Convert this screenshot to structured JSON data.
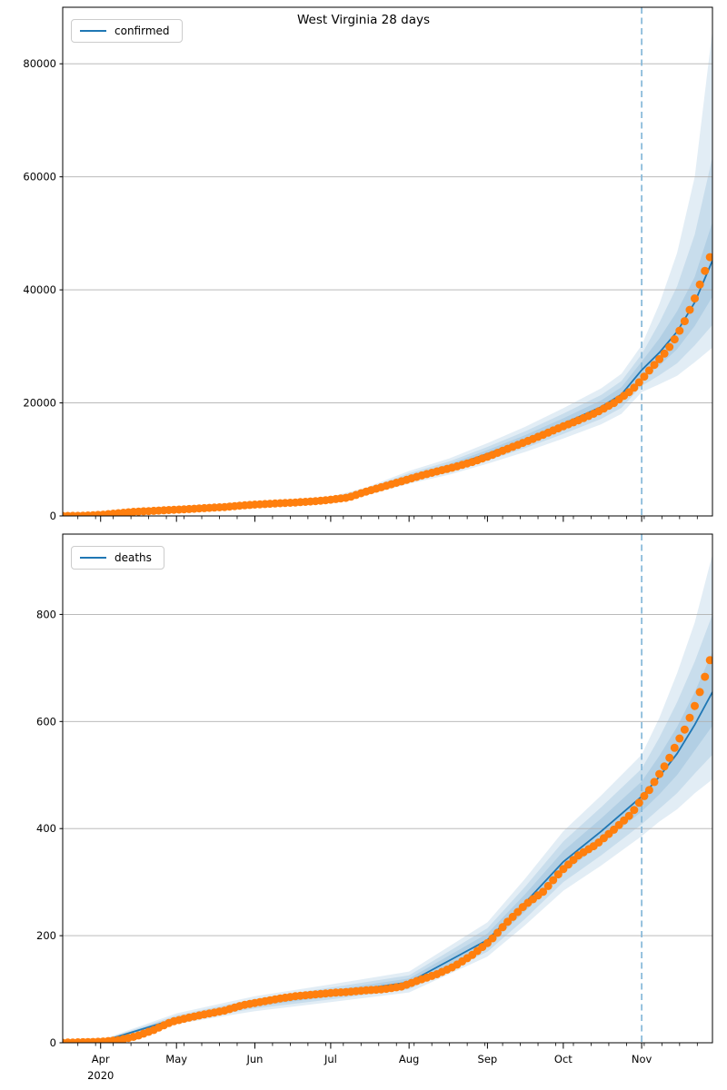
{
  "figure": {
    "title": "West Virginia 28 days",
    "year_label": "2020",
    "year_under_month": "Apr",
    "colors": {
      "actual": "#ff7f0e",
      "forecast": "#1f77b4",
      "band_fill": "#1f77b4",
      "vline": "#85b8d9",
      "grid": "#b0b0b0",
      "spine": "#000000",
      "text": "#000000",
      "legend_border": "#cccccc"
    }
  },
  "chart_data": [
    {
      "type": "line",
      "name": "confirmed",
      "title": "West Virginia 28 days",
      "legend": "confirmed",
      "xlabel": "",
      "ylabel": "",
      "x_unit": "days from first plotted date (mid-March 2020)",
      "x_range_days": [
        0,
        257
      ],
      "ylim": [
        0,
        90000
      ],
      "yticks": [
        0,
        20000,
        40000,
        60000,
        80000
      ],
      "grid": "horizontal",
      "legend_position": "upper-left",
      "forecast_start_day": 229,
      "x_months": [
        {
          "label": "Apr",
          "day": 15
        },
        {
          "label": "May",
          "day": 45
        },
        {
          "label": "Jun",
          "day": 76
        },
        {
          "label": "Jul",
          "day": 106
        },
        {
          "label": "Aug",
          "day": 137
        },
        {
          "label": "Sep",
          "day": 168
        },
        {
          "label": "Oct",
          "day": 198
        },
        {
          "label": "Nov",
          "day": 229
        }
      ],
      "actual": {
        "marker": "circle",
        "marker_size_px": 9,
        "days": [
          0,
          7,
          15,
          22,
          29,
          36,
          43,
          50,
          57,
          64,
          71,
          78,
          85,
          92,
          99,
          106,
          113,
          120,
          127,
          134,
          141,
          148,
          155,
          162,
          169,
          176,
          183,
          190,
          197,
          204,
          211,
          218,
          225,
          229,
          232,
          236,
          239,
          243,
          246,
          250,
          253,
          257
        ],
        "values": [
          1,
          20,
          191,
          483,
          754,
          902,
          1063,
          1224,
          1404,
          1567,
          1854,
          2062,
          2233,
          2376,
          2582,
          2870,
          3262,
          4313,
          5212,
          6120,
          7051,
          7875,
          8641,
          9540,
          10641,
          11873,
          13100,
          14352,
          15692,
          16920,
          18280,
          19970,
          22223,
          24109,
          25727,
          27742,
          29217,
          31923,
          34460,
          38482,
          42148,
          47000
        ]
      },
      "forecast": {
        "days": [
          0,
          15,
          45,
          76,
          106,
          120,
          137,
          153,
          168,
          183,
          198,
          213,
          221,
          229,
          236,
          243,
          250,
          257
        ],
        "values": [
          1,
          200,
          1120,
          2020,
          2900,
          4300,
          6800,
          8700,
          11000,
          13500,
          16300,
          19300,
          21500,
          25800,
          28900,
          32600,
          37800,
          45200
        ]
      },
      "bands": [
        {
          "level": "inner",
          "days": [
            0,
            15,
            45,
            76,
            106,
            120,
            137,
            153,
            168,
            183,
            198,
            213,
            221,
            229,
            236,
            243,
            250,
            257
          ],
          "lower": [
            1,
            188,
            1053,
            1899,
            2726,
            4042,
            6392,
            8178,
            10340,
            12690,
            15322,
            18142,
            20210,
            24300,
            26600,
            29500,
            33600,
            38800
          ],
          "upper": [
            1,
            212,
            1187,
            2141,
            3074,
            4558,
            7208,
            9222,
            11660,
            14310,
            17278,
            20458,
            22790,
            27300,
            31400,
            36200,
            42300,
            52000
          ]
        },
        {
          "level": "middle",
          "days": [
            0,
            15,
            45,
            76,
            106,
            120,
            137,
            153,
            168,
            183,
            198,
            213,
            221,
            229,
            236,
            243,
            250,
            257
          ],
          "lower": [
            1,
            178,
            997,
            1798,
            2581,
            3827,
            6052,
            7743,
            9790,
            12015,
            14507,
            17177,
            19135,
            23000,
            24900,
            27000,
            30200,
            33800
          ],
          "upper": [
            1,
            222,
            1243,
            2242,
            3219,
            4773,
            7548,
            9657,
            12210,
            14985,
            18093,
            21423,
            23865,
            28600,
            34200,
            40600,
            49800,
            63500
          ]
        },
        {
          "level": "outer",
          "days": [
            0,
            15,
            45,
            76,
            106,
            120,
            137,
            153,
            168,
            183,
            198,
            213,
            221,
            229,
            236,
            243,
            250,
            257
          ],
          "lower": [
            1,
            168,
            941,
            1697,
            2436,
            3612,
            5712,
            7308,
            9240,
            11340,
            13692,
            16212,
            18060,
            21900,
            23300,
            24800,
            27200,
            29800
          ],
          "upper": [
            1,
            234,
            1310,
            2363,
            3393,
            5031,
            7956,
            10179,
            12870,
            15795,
            19071,
            22581,
            25155,
            30200,
            37500,
            46500,
            60000,
            86000
          ]
        }
      ]
    },
    {
      "type": "line",
      "name": "deaths",
      "title": "",
      "legend": "deaths",
      "xlabel": "",
      "ylabel": "",
      "x_unit": "days from first plotted date (mid-March 2020)",
      "x_range_days": [
        0,
        257
      ],
      "ylim": [
        0,
        950
      ],
      "yticks": [
        0,
        200,
        400,
        600,
        800
      ],
      "grid": "horizontal",
      "legend_position": "upper-left",
      "forecast_start_day": 229,
      "x_months": [
        {
          "label": "Apr",
          "day": 15
        },
        {
          "label": "May",
          "day": 45
        },
        {
          "label": "Jun",
          "day": 76
        },
        {
          "label": "Jul",
          "day": 106
        },
        {
          "label": "Aug",
          "day": 137
        },
        {
          "label": "Sep",
          "day": 168
        },
        {
          "label": "Oct",
          "day": 198
        },
        {
          "label": "Nov",
          "day": 229
        }
      ],
      "actual": {
        "marker": "circle",
        "marker_size_px": 9,
        "days": [
          0,
          15,
          22,
          29,
          36,
          43,
          50,
          57,
          64,
          71,
          78,
          85,
          92,
          99,
          106,
          113,
          120,
          127,
          134,
          141,
          148,
          155,
          162,
          169,
          176,
          183,
          190,
          197,
          204,
          211,
          218,
          225,
          229,
          232,
          236,
          239,
          243,
          246,
          250,
          253,
          257
        ],
        "values": [
          0,
          2,
          5,
          12,
          24,
          39,
          47,
          54,
          60,
          70,
          76,
          82,
          87,
          90,
          93,
          95,
          98,
          100,
          105,
          117,
          128,
          143,
          164,
          190,
          226,
          258,
          282,
          320,
          350,
          370,
          398,
          428,
          455,
          472,
          502,
          523,
          560,
          585,
          629,
          668,
          730
        ]
      },
      "forecast": {
        "days": [
          0,
          15,
          45,
          76,
          106,
          137,
          168,
          183,
          198,
          213,
          229,
          236,
          243,
          250,
          257
        ],
        "values": [
          0,
          2,
          45,
          73,
          92,
          113,
          192,
          262,
          338,
          395,
          460,
          497,
          540,
          594,
          655
        ]
      },
      "bands": [
        {
          "level": "inner",
          "days": [
            0,
            15,
            45,
            76,
            106,
            137,
            168,
            183,
            198,
            213,
            229,
            236,
            243,
            250,
            257
          ],
          "lower": [
            0,
            1,
            42,
            68,
            86,
            106,
            180,
            246,
            318,
            371,
            432,
            464,
            500,
            546,
            592
          ],
          "upper": [
            0,
            3,
            48,
            78,
            98,
            120,
            204,
            278,
            358,
            419,
            488,
            536,
            590,
            655,
            730
          ]
        },
        {
          "level": "middle",
          "days": [
            0,
            15,
            45,
            76,
            106,
            137,
            168,
            183,
            198,
            213,
            229,
            236,
            243,
            250,
            257
          ],
          "lower": [
            0,
            1,
            39,
            64,
            81,
            100,
            170,
            232,
            300,
            350,
            408,
            437,
            466,
            503,
            538
          ],
          "upper": [
            0,
            4,
            51,
            82,
            103,
            126,
            214,
            292,
            376,
            440,
            512,
            570,
            636,
            712,
            800
          ]
        },
        {
          "level": "outer",
          "days": [
            0,
            15,
            45,
            76,
            106,
            137,
            168,
            183,
            198,
            213,
            229,
            236,
            243,
            250,
            257
          ],
          "lower": [
            0,
            0,
            35,
            59,
            76,
            94,
            161,
            220,
            284,
            331,
            386,
            413,
            436,
            466,
            492
          ],
          "upper": [
            0,
            5,
            55,
            87,
            109,
            133,
            225,
            307,
            395,
            462,
            538,
            607,
            690,
            785,
            912
          ]
        }
      ]
    }
  ]
}
